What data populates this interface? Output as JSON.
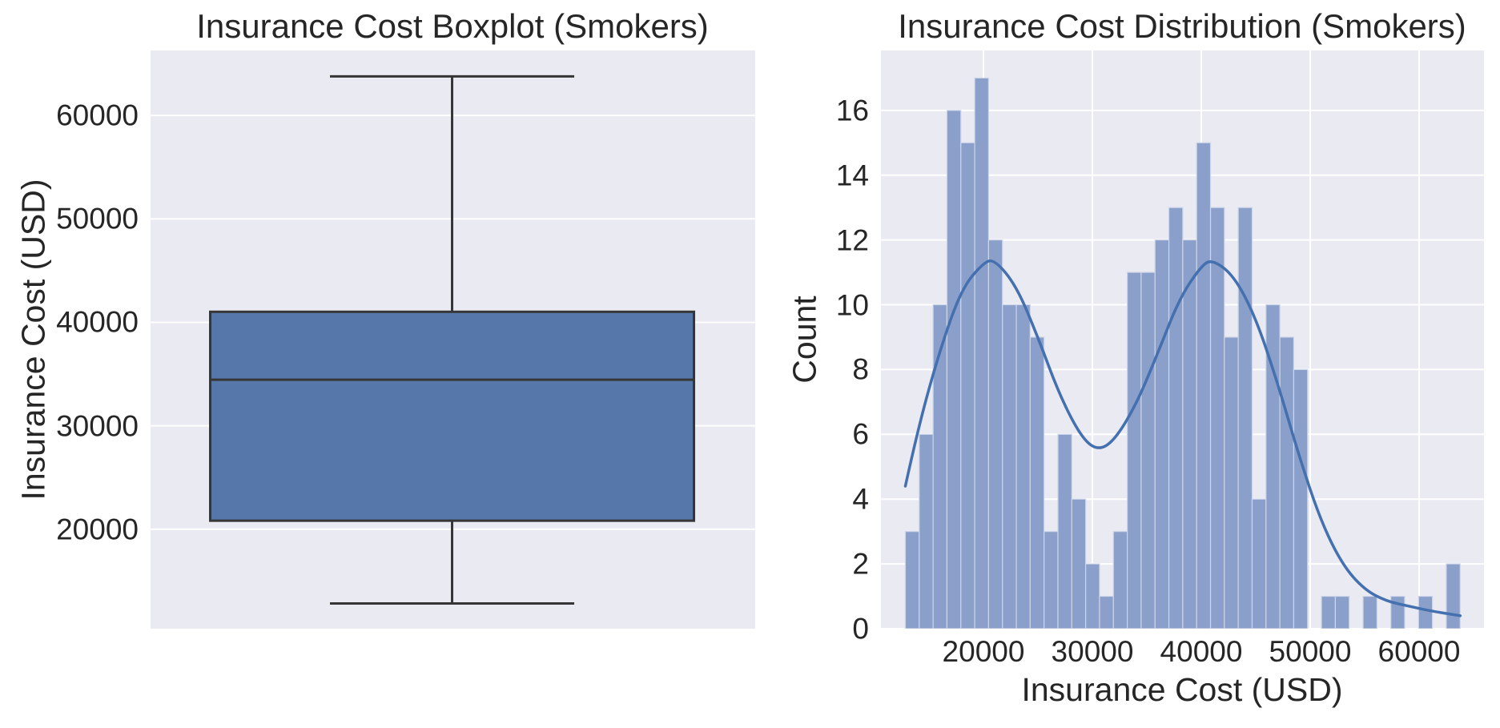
{
  "figure_bg": "#ffffff",
  "colors": {
    "axes_bg": "#EAEAF2",
    "grid": "#FFFFFF",
    "box_fill": "#5577A9",
    "box_edge": "#363636",
    "whisker": "#363636",
    "bar_fill": "#8A9FC9",
    "bar_edge": "#CDD5E8",
    "kde_line": "#4470AF",
    "text": "#262626"
  },
  "chart_data": [
    {
      "type": "boxplot",
      "title": "Insurance Cost Boxplot (Smokers)",
      "xlabel": "",
      "ylabel": "Insurance Cost (USD)",
      "orientation": "vertical",
      "grid": true,
      "legend": false,
      "yticks": [
        20000,
        30000,
        40000,
        50000,
        60000
      ],
      "ylim": [
        10388,
        66279
      ],
      "stats": {
        "whisker_low": 12829.46,
        "q1": 20826.24,
        "median": 34456.35,
        "q3": 41019.21,
        "whisker_high": 63770.43
      }
    },
    {
      "type": "bar",
      "subtype": "histogram_with_kde",
      "title": "Insurance Cost Distribution (Smokers)",
      "xlabel": "Insurance Cost (USD)",
      "ylabel": "Count",
      "grid": true,
      "legend": false,
      "bin_start": 12829.46,
      "bin_width": 1273.52,
      "counts": [
        3,
        6,
        10,
        16,
        15,
        17,
        12,
        10,
        10,
        9,
        3,
        6,
        4,
        2,
        1,
        3,
        11,
        11,
        12,
        13,
        12,
        15,
        13,
        9,
        13,
        4,
        10,
        9,
        8,
        0,
        1,
        1,
        0,
        1,
        0,
        1,
        0,
        1,
        0,
        2
      ],
      "total_count": 274,
      "xticks": [
        20000,
        30000,
        40000,
        50000,
        60000
      ],
      "yticks": [
        0,
        2,
        4,
        6,
        8,
        10,
        12,
        14,
        16
      ],
      "xlim": [
        10588,
        65956
      ],
      "ylim": [
        0,
        17.85
      ],
      "kde_points": [
        {
          "x": 12829,
          "y": 4.4
        },
        {
          "x": 14000,
          "y": 6.2
        },
        {
          "x": 16000,
          "y": 8.6
        },
        {
          "x": 18000,
          "y": 10.5
        },
        {
          "x": 20000,
          "y": 11.3
        },
        {
          "x": 21000,
          "y": 11.4
        },
        {
          "x": 23000,
          "y": 10.6
        },
        {
          "x": 25000,
          "y": 9.0
        },
        {
          "x": 27000,
          "y": 7.2
        },
        {
          "x": 29000,
          "y": 5.9
        },
        {
          "x": 30500,
          "y": 5.5
        },
        {
          "x": 32000,
          "y": 5.8
        },
        {
          "x": 34000,
          "y": 6.9
        },
        {
          "x": 36000,
          "y": 8.5
        },
        {
          "x": 38000,
          "y": 10.2
        },
        {
          "x": 40000,
          "y": 11.2
        },
        {
          "x": 41000,
          "y": 11.4
        },
        {
          "x": 43000,
          "y": 10.9
        },
        {
          "x": 45000,
          "y": 9.6
        },
        {
          "x": 47000,
          "y": 7.6
        },
        {
          "x": 49000,
          "y": 5.3
        },
        {
          "x": 51000,
          "y": 3.3
        },
        {
          "x": 53000,
          "y": 1.95
        },
        {
          "x": 55000,
          "y": 1.2
        },
        {
          "x": 57000,
          "y": 0.85
        },
        {
          "x": 59000,
          "y": 0.7
        },
        {
          "x": 61000,
          "y": 0.55
        },
        {
          "x": 63770,
          "y": 0.4
        }
      ]
    }
  ]
}
